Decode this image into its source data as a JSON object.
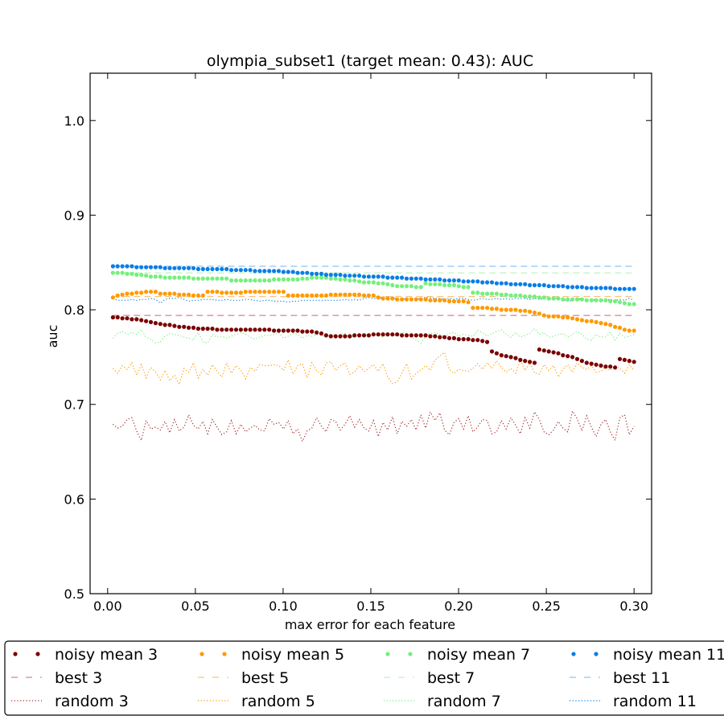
{
  "chart_data": {
    "type": "line",
    "title": "olympia_subset1 (target mean: 0.43): AUC",
    "xlabel": "max error for each feature",
    "ylabel": "auc",
    "xlim": [
      -0.01,
      0.31
    ],
    "ylim": [
      0.5,
      1.05
    ],
    "xticks": [
      "0.00",
      "0.05",
      "0.10",
      "0.15",
      "0.20",
      "0.25",
      "0.30"
    ],
    "yticks": [
      "0.5",
      "0.6",
      "0.7",
      "0.8",
      "0.9",
      "1.0"
    ],
    "grid": false,
    "legend_position": "below plot",
    "series_style": {
      "noisy": "dots",
      "best": "dashed",
      "random": "dotted"
    },
    "groups": [
      {
        "k": 3,
        "color": "#7a0000",
        "noisy_label": "noisy mean 3",
        "best_label": "best 3",
        "random_label": "random 3",
        "best_color": "#d9828c",
        "random_color": "#a42a2a",
        "best": 0.794,
        "noisy": [
          0.792,
          0.792,
          0.791,
          0.791,
          0.79,
          0.79,
          0.789,
          0.788,
          0.787,
          0.786,
          0.785,
          0.784,
          0.784,
          0.783,
          0.782,
          0.782,
          0.781,
          0.781,
          0.78,
          0.78,
          0.78,
          0.78,
          0.779,
          0.779,
          0.779,
          0.779,
          0.779,
          0.779,
          0.779,
          0.779,
          0.779,
          0.779,
          0.779,
          0.779,
          0.778,
          0.778,
          0.778,
          0.778,
          0.778,
          0.778,
          0.777,
          0.777,
          0.777,
          0.776,
          0.775,
          0.773,
          0.772,
          0.772,
          0.772,
          0.772,
          0.772,
          0.773,
          0.773,
          0.773,
          0.773,
          0.774,
          0.774,
          0.774,
          0.774,
          0.774,
          0.774,
          0.773,
          0.773,
          0.773,
          0.773,
          0.773,
          0.773,
          0.772,
          0.772,
          0.771,
          0.771,
          0.77,
          0.77,
          0.769,
          0.769,
          0.769,
          0.768,
          0.768,
          0.767,
          0.766,
          0.756,
          0.754,
          0.752,
          0.751,
          0.75,
          0.749,
          0.747,
          0.746,
          0.745,
          0.744,
          0.758,
          0.757,
          0.756,
          0.755,
          0.754,
          0.752,
          0.751,
          0.75,
          0.748,
          0.746,
          0.744,
          0.743,
          0.742,
          0.741,
          0.74,
          0.74,
          0.739,
          0.748,
          0.747,
          0.746,
          0.745
        ],
        "random": [
          0.679,
          0.675,
          0.677,
          0.684,
          0.686,
          0.672,
          0.662,
          0.683,
          0.674,
          0.676,
          0.673,
          0.682,
          0.67,
          0.684,
          0.672,
          0.676,
          0.689,
          0.678,
          0.674,
          0.682,
          0.669,
          0.684,
          0.676,
          0.668,
          0.671,
          0.683,
          0.669,
          0.679,
          0.671,
          0.675,
          0.678,
          0.673,
          0.672,
          0.685,
          0.679,
          0.681,
          0.674,
          0.683,
          0.669,
          0.674,
          0.661,
          0.672,
          0.675,
          0.686,
          0.677,
          0.671,
          0.684,
          0.682,
          0.673,
          0.679,
          0.688,
          0.676,
          0.684,
          0.675,
          0.672,
          0.683,
          0.666,
          0.681,
          0.673,
          0.687,
          0.669,
          0.682,
          0.677,
          0.684,
          0.673,
          0.689,
          0.675,
          0.692,
          0.683,
          0.691,
          0.673,
          0.668,
          0.681,
          0.685,
          0.674,
          0.688,
          0.671,
          0.676,
          0.684,
          0.683,
          0.669,
          0.671,
          0.683,
          0.674,
          0.686,
          0.678,
          0.669,
          0.686,
          0.675,
          0.692,
          0.684,
          0.671,
          0.668,
          0.673,
          0.682,
          0.675,
          0.671,
          0.693,
          0.685,
          0.672,
          0.688,
          0.676,
          0.666,
          0.679,
          0.684,
          0.671,
          0.662,
          0.686,
          0.689,
          0.668,
          0.677
        ]
      },
      {
        "k": 5,
        "color": "#ff9a00",
        "noisy_label": "noisy mean 5",
        "best_label": "best 5",
        "random_label": "random 5",
        "best_color": "#ffc27a",
        "random_color": "#ff9a00",
        "best": 0.814,
        "noisy": [
          0.813,
          0.815,
          0.816,
          0.817,
          0.817,
          0.818,
          0.818,
          0.819,
          0.819,
          0.819,
          0.817,
          0.817,
          0.817,
          0.817,
          0.816,
          0.816,
          0.816,
          0.815,
          0.815,
          0.815,
          0.819,
          0.819,
          0.819,
          0.818,
          0.818,
          0.818,
          0.818,
          0.818,
          0.819,
          0.819,
          0.819,
          0.819,
          0.819,
          0.819,
          0.819,
          0.819,
          0.819,
          0.815,
          0.815,
          0.815,
          0.815,
          0.815,
          0.815,
          0.815,
          0.815,
          0.815,
          0.816,
          0.816,
          0.816,
          0.816,
          0.816,
          0.816,
          0.816,
          0.815,
          0.815,
          0.815,
          0.813,
          0.812,
          0.812,
          0.812,
          0.811,
          0.811,
          0.811,
          0.811,
          0.811,
          0.811,
          0.811,
          0.81,
          0.81,
          0.81,
          0.81,
          0.809,
          0.809,
          0.809,
          0.809,
          0.808,
          0.802,
          0.802,
          0.802,
          0.802,
          0.801,
          0.801,
          0.8,
          0.8,
          0.8,
          0.8,
          0.799,
          0.799,
          0.798,
          0.797,
          0.796,
          0.794,
          0.793,
          0.793,
          0.793,
          0.792,
          0.792,
          0.791,
          0.79,
          0.789,
          0.788,
          0.788,
          0.787,
          0.786,
          0.785,
          0.784,
          0.782,
          0.781,
          0.779,
          0.778,
          0.778
        ],
        "random": [
          0.738,
          0.733,
          0.741,
          0.737,
          0.744,
          0.731,
          0.742,
          0.728,
          0.739,
          0.734,
          0.726,
          0.736,
          0.725,
          0.731,
          0.721,
          0.738,
          0.734,
          0.744,
          0.728,
          0.737,
          0.731,
          0.742,
          0.735,
          0.729,
          0.744,
          0.733,
          0.741,
          0.736,
          0.727,
          0.739,
          0.735,
          0.742,
          0.741,
          0.741,
          0.742,
          0.741,
          0.736,
          0.747,
          0.732,
          0.741,
          0.743,
          0.728,
          0.744,
          0.736,
          0.731,
          0.744,
          0.745,
          0.736,
          0.741,
          0.744,
          0.732,
          0.734,
          0.741,
          0.735,
          0.738,
          0.742,
          0.735,
          0.743,
          0.729,
          0.722,
          0.724,
          0.733,
          0.743,
          0.727,
          0.733,
          0.736,
          0.741,
          0.736,
          0.747,
          0.751,
          0.755,
          0.737,
          0.733,
          0.737,
          0.736,
          0.735,
          0.738,
          0.743,
          0.737,
          0.744,
          0.738,
          0.746,
          0.739,
          0.734,
          0.738,
          0.733,
          0.747,
          0.736,
          0.744,
          0.733,
          0.732,
          0.742,
          0.736,
          0.741,
          0.729,
          0.737,
          0.742,
          0.734,
          0.744,
          0.739,
          0.737,
          0.741,
          0.734,
          0.735,
          0.739,
          0.736,
          0.741,
          0.738,
          0.733,
          0.742,
          0.736
        ]
      },
      {
        "k": 7,
        "color": "#74f07a",
        "noisy_label": "noisy mean 7",
        "best_label": "best 7",
        "random_label": "random 7",
        "best_color": "#bff5bf",
        "random_color": "#74f07a",
        "best": 0.839,
        "noisy": [
          0.839,
          0.839,
          0.839,
          0.838,
          0.838,
          0.837,
          0.837,
          0.836,
          0.835,
          0.835,
          0.835,
          0.834,
          0.834,
          0.834,
          0.834,
          0.834,
          0.834,
          0.833,
          0.833,
          0.833,
          0.833,
          0.833,
          0.833,
          0.833,
          0.833,
          0.831,
          0.831,
          0.831,
          0.831,
          0.831,
          0.831,
          0.831,
          0.831,
          0.831,
          0.832,
          0.832,
          0.832,
          0.832,
          0.832,
          0.832,
          0.833,
          0.833,
          0.834,
          0.834,
          0.834,
          0.834,
          0.833,
          0.833,
          0.832,
          0.832,
          0.831,
          0.831,
          0.83,
          0.829,
          0.829,
          0.829,
          0.828,
          0.828,
          0.827,
          0.826,
          0.825,
          0.825,
          0.825,
          0.825,
          0.824,
          0.824,
          0.828,
          0.827,
          0.827,
          0.827,
          0.826,
          0.826,
          0.826,
          0.825,
          0.824,
          0.824,
          0.818,
          0.818,
          0.817,
          0.817,
          0.817,
          0.817,
          0.816,
          0.816,
          0.815,
          0.815,
          0.815,
          0.814,
          0.814,
          0.814,
          0.813,
          0.813,
          0.812,
          0.812,
          0.812,
          0.811,
          0.811,
          0.811,
          0.811,
          0.811,
          0.81,
          0.81,
          0.81,
          0.81,
          0.81,
          0.809,
          0.809,
          0.808,
          0.807,
          0.806,
          0.806
        ],
        "random": [
          0.77,
          0.775,
          0.777,
          0.774,
          0.776,
          0.774,
          0.779,
          0.771,
          0.769,
          0.765,
          0.766,
          0.772,
          0.775,
          0.774,
          0.773,
          0.771,
          0.77,
          0.768,
          0.776,
          0.766,
          0.765,
          0.774,
          0.771,
          0.772,
          0.77,
          0.772,
          0.774,
          0.776,
          0.774,
          0.771,
          0.769,
          0.771,
          0.773,
          0.773,
          0.774,
          0.776,
          0.77,
          0.772,
          0.775,
          0.774,
          0.77,
          0.773,
          0.772,
          0.774,
          0.773,
          0.771,
          0.774,
          0.772,
          0.773,
          0.775,
          0.771,
          0.772,
          0.772,
          0.775,
          0.771,
          0.774,
          0.773,
          0.771,
          0.775,
          0.772,
          0.774,
          0.776,
          0.775,
          0.771,
          0.768,
          0.765,
          0.772,
          0.775,
          0.776,
          0.774,
          0.771,
          0.775,
          0.776,
          0.772,
          0.774,
          0.773,
          0.772,
          0.778,
          0.776,
          0.772,
          0.775,
          0.777,
          0.779,
          0.774,
          0.771,
          0.776,
          0.771,
          0.773,
          0.775,
          0.78,
          0.774,
          0.776,
          0.771,
          0.772,
          0.774,
          0.775,
          0.771,
          0.774,
          0.777,
          0.774,
          0.769,
          0.768,
          0.774,
          0.771,
          0.772,
          0.776,
          0.768,
          0.775,
          0.771,
          0.772,
          0.774
        ]
      },
      {
        "k": 11,
        "color": "#0a7ee6",
        "noisy_label": "noisy mean 11",
        "best_label": "best 11",
        "random_label": "random 11",
        "best_color": "#8dc4f2",
        "random_color": "#0a7ee6",
        "best": 0.846,
        "noisy": [
          0.846,
          0.846,
          0.846,
          0.846,
          0.846,
          0.845,
          0.845,
          0.845,
          0.845,
          0.845,
          0.845,
          0.844,
          0.844,
          0.844,
          0.844,
          0.844,
          0.844,
          0.844,
          0.843,
          0.843,
          0.843,
          0.843,
          0.843,
          0.843,
          0.843,
          0.842,
          0.842,
          0.842,
          0.842,
          0.842,
          0.841,
          0.841,
          0.841,
          0.841,
          0.841,
          0.841,
          0.84,
          0.84,
          0.84,
          0.839,
          0.839,
          0.839,
          0.838,
          0.838,
          0.838,
          0.837,
          0.837,
          0.837,
          0.837,
          0.836,
          0.836,
          0.836,
          0.836,
          0.835,
          0.835,
          0.835,
          0.835,
          0.835,
          0.834,
          0.834,
          0.834,
          0.834,
          0.833,
          0.833,
          0.833,
          0.833,
          0.832,
          0.832,
          0.832,
          0.832,
          0.831,
          0.831,
          0.831,
          0.831,
          0.83,
          0.83,
          0.83,
          0.83,
          0.829,
          0.829,
          0.829,
          0.828,
          0.828,
          0.828,
          0.827,
          0.827,
          0.827,
          0.827,
          0.826,
          0.826,
          0.826,
          0.826,
          0.825,
          0.825,
          0.825,
          0.825,
          0.824,
          0.824,
          0.824,
          0.824,
          0.823,
          0.823,
          0.823,
          0.823,
          0.823,
          0.823,
          0.822,
          0.822,
          0.822,
          0.822,
          0.822
        ],
        "random": [
          0.812,
          0.81,
          0.81,
          0.81,
          0.811,
          0.81,
          0.811,
          0.811,
          0.812,
          0.811,
          0.807,
          0.811,
          0.812,
          0.812,
          0.813,
          0.811,
          0.809,
          0.81,
          0.81,
          0.811,
          0.811,
          0.811,
          0.81,
          0.81,
          0.811,
          0.81,
          0.81,
          0.81,
          0.811,
          0.811,
          0.81,
          0.809,
          0.81,
          0.81,
          0.809,
          0.809,
          0.809,
          0.808,
          0.809,
          0.809,
          0.81,
          0.81,
          0.81,
          0.81,
          0.81,
          0.81,
          0.81,
          0.81,
          0.81,
          0.811,
          0.81,
          0.811,
          0.81,
          0.812,
          0.813,
          0.812,
          0.812,
          0.813,
          0.811,
          0.812,
          0.812,
          0.811,
          0.812,
          0.812,
          0.811,
          0.812,
          0.813,
          0.813,
          0.812,
          0.812,
          0.811,
          0.812,
          0.811,
          0.812,
          0.812,
          0.811,
          0.81,
          0.811,
          0.812,
          0.811,
          0.811,
          0.812,
          0.811,
          0.812,
          0.811,
          0.812,
          0.812,
          0.812,
          0.811,
          0.812,
          0.811,
          0.812,
          0.811,
          0.812,
          0.812,
          0.811,
          0.809,
          0.81,
          0.811,
          0.812,
          0.81,
          0.81,
          0.811,
          0.81,
          0.81,
          0.811,
          0.81,
          0.811,
          0.81,
          0.812,
          0.81
        ]
      }
    ]
  }
}
